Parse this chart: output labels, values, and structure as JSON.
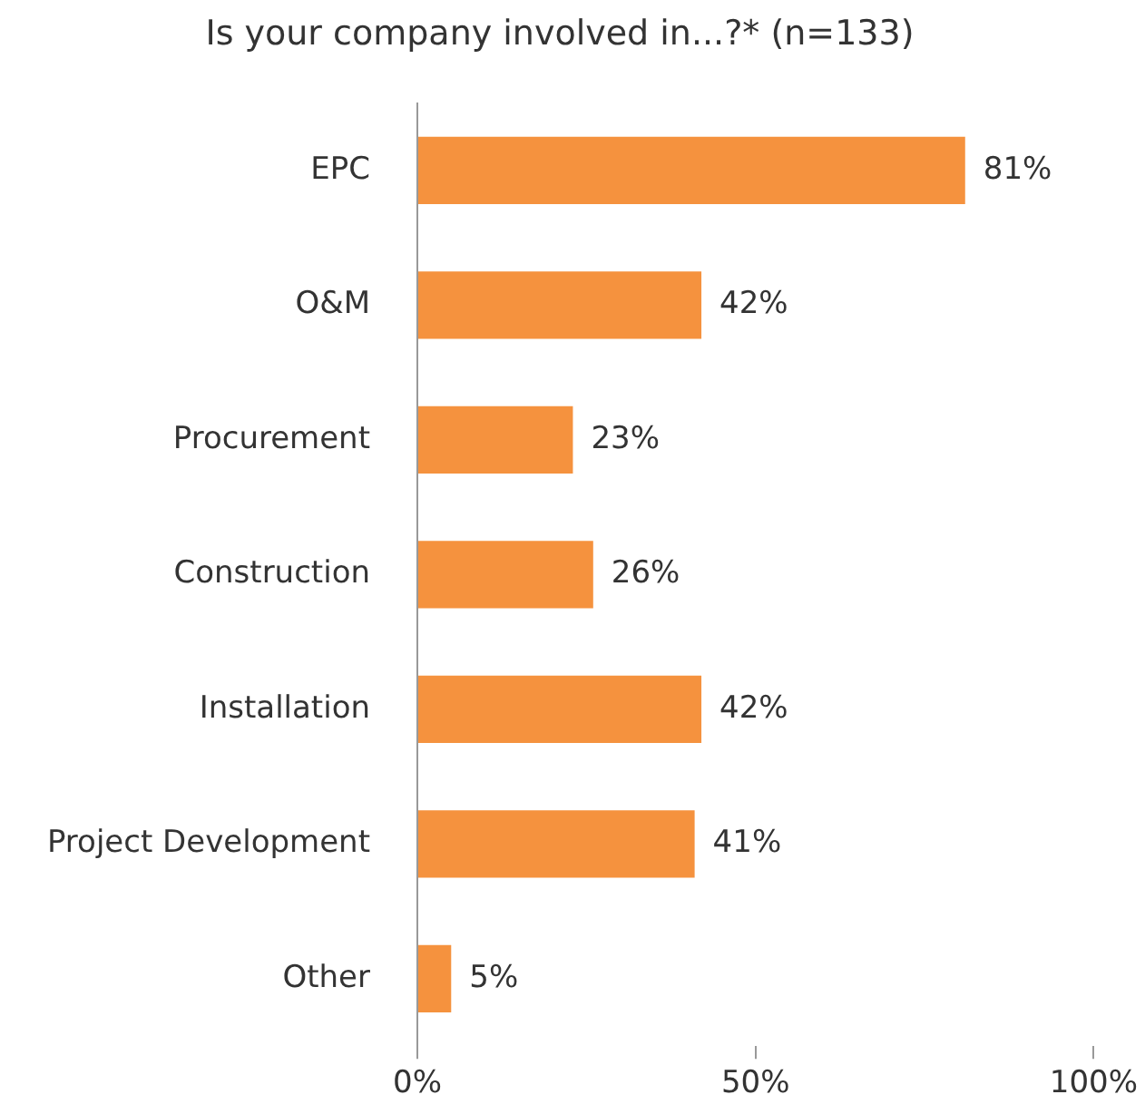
{
  "chart_data": {
    "type": "bar",
    "orientation": "horizontal",
    "title": "Is your company involved in...?* (n=133)",
    "categories": [
      "EPC",
      "O&M",
      "Procurement",
      "Construction",
      "Installation",
      "Project Development",
      "Other"
    ],
    "values": [
      81,
      42,
      23,
      26,
      42,
      41,
      5
    ],
    "value_labels": [
      "81%",
      "42%",
      "23%",
      "26%",
      "42%",
      "41%",
      "5%"
    ],
    "color": "#f5923e",
    "xlim": [
      0,
      100
    ],
    "xticks": [
      {
        "value": 0,
        "label": "0%"
      },
      {
        "value": 50,
        "label": "50%"
      },
      {
        "value": 100,
        "label": "100%"
      }
    ],
    "grid": false,
    "legend": false
  }
}
